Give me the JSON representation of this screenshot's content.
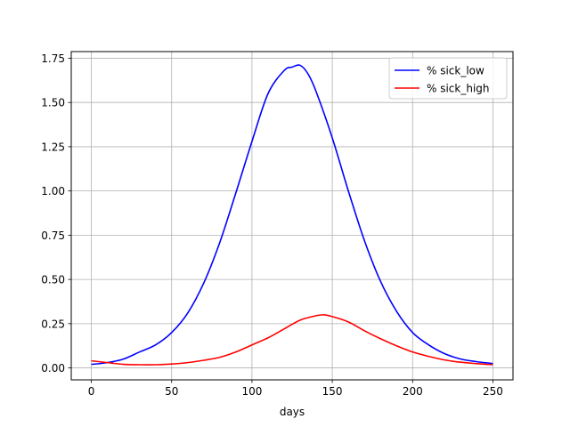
{
  "chart_data": {
    "type": "line",
    "title": "",
    "xlabel": "days",
    "ylabel": "",
    "xlim": [
      -12.5,
      262.5
    ],
    "ylim": [
      -0.0675,
      1.7875
    ],
    "xticks": [
      0,
      50,
      100,
      150,
      200,
      250
    ],
    "yticks": [
      0.0,
      0.25,
      0.5,
      0.75,
      1.0,
      1.25,
      1.5,
      1.75
    ],
    "grid": true,
    "legend_position": "top-right",
    "series": [
      {
        "name": "% sick_low",
        "color": "#0000ff",
        "x": [
          0,
          10,
          20,
          30,
          40,
          50,
          60,
          70,
          80,
          90,
          100,
          110,
          120,
          125,
          130,
          135,
          140,
          150,
          160,
          170,
          180,
          190,
          200,
          210,
          220,
          230,
          240,
          250
        ],
        "y": [
          0.02,
          0.03,
          0.05,
          0.09,
          0.13,
          0.2,
          0.31,
          0.48,
          0.71,
          0.99,
          1.28,
          1.55,
          1.68,
          1.7,
          1.71,
          1.66,
          1.56,
          1.3,
          1.0,
          0.72,
          0.49,
          0.32,
          0.2,
          0.13,
          0.08,
          0.05,
          0.035,
          0.025
        ]
      },
      {
        "name": "% sick_high",
        "color": "#ff0000",
        "x": [
          0,
          10,
          20,
          30,
          40,
          50,
          60,
          70,
          80,
          90,
          100,
          110,
          120,
          130,
          140,
          145,
          150,
          160,
          170,
          180,
          190,
          200,
          210,
          220,
          230,
          240,
          250
        ],
        "y": [
          0.04,
          0.03,
          0.02,
          0.018,
          0.018,
          0.022,
          0.03,
          0.043,
          0.06,
          0.09,
          0.13,
          0.17,
          0.22,
          0.27,
          0.295,
          0.3,
          0.29,
          0.26,
          0.21,
          0.165,
          0.125,
          0.09,
          0.065,
          0.045,
          0.032,
          0.024,
          0.018
        ]
      }
    ]
  }
}
